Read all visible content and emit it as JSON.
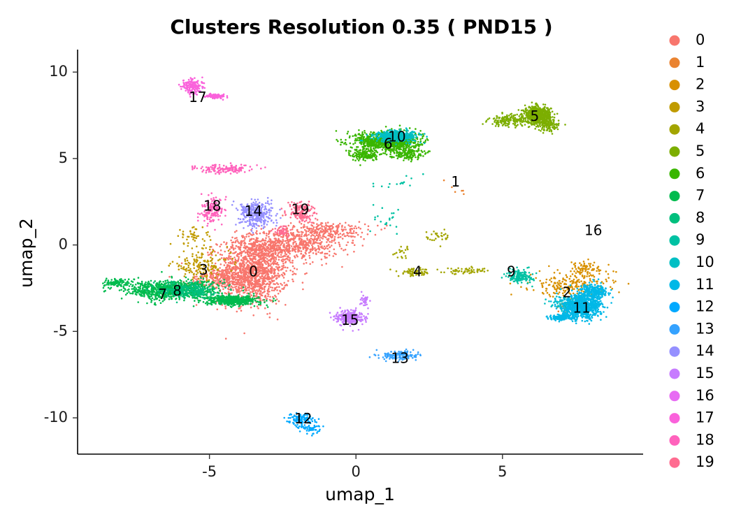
{
  "chart_data": {
    "type": "scatter",
    "title": "Clusters Resolution 0.35 ( PND15 )",
    "xlabel": "umap_1",
    "ylabel": "umap_2",
    "xlim": [
      -9.5,
      9.8
    ],
    "ylim": [
      -12.1,
      11.3
    ],
    "xticks": [
      -5,
      0,
      5
    ],
    "yticks": [
      10,
      5,
      0,
      -5,
      -10
    ],
    "xtick_labels": [
      "-5",
      "0",
      "5"
    ],
    "ytick_labels": [
      "10",
      "5",
      "0",
      "-5",
      "-10"
    ],
    "grid": false,
    "legend_position": "right",
    "series": [
      {
        "name": "0",
        "color": "#F8766D",
        "label_pos": [
          -3.5,
          -1.6
        ],
        "blobs": [
          [
            -3.5,
            -1.5,
            1.1,
            1.7,
            1300
          ],
          [
            -2.3,
            0.0,
            1.6,
            0.8,
            600
          ],
          [
            -1.0,
            0.8,
            1.3,
            0.5,
            250
          ],
          [
            -4.6,
            -2.0,
            1.0,
            0.6,
            250
          ]
        ]
      },
      {
        "name": "1",
        "color": "#EA8331",
        "label_pos": [
          3.4,
          3.6
        ],
        "blobs": [
          [
            3.6,
            3.3,
            0.5,
            0.5,
            6
          ],
          [
            7.1,
            -3.6,
            0.6,
            0.4,
            12
          ]
        ]
      },
      {
        "name": "2",
        "color": "#D89000",
        "label_pos": [
          7.2,
          -2.8
        ],
        "blobs": [
          [
            7.3,
            -2.3,
            1.2,
            0.6,
            200
          ],
          [
            7.8,
            -1.4,
            0.8,
            0.4,
            80
          ]
        ]
      },
      {
        "name": "3",
        "color": "#C09B00",
        "label_pos": [
          -5.2,
          -1.5
        ],
        "blobs": [
          [
            -5.3,
            -1.2,
            0.9,
            0.7,
            150
          ],
          [
            -5.5,
            0.4,
            0.6,
            0.6,
            50
          ]
        ]
      },
      {
        "name": "4",
        "color": "#A3A500",
        "label_pos": [
          2.1,
          -1.6
        ],
        "blobs": [
          [
            2.0,
            -1.6,
            0.5,
            0.2,
            70
          ],
          [
            3.8,
            -1.5,
            0.7,
            0.15,
            60
          ],
          [
            2.8,
            0.5,
            0.4,
            0.4,
            30
          ],
          [
            1.6,
            -0.5,
            0.3,
            0.4,
            20
          ]
        ]
      },
      {
        "name": "5",
        "color": "#7CAE00",
        "label_pos": [
          6.1,
          7.4
        ],
        "blobs": [
          [
            6.2,
            7.5,
            0.4,
            0.45,
            700
          ],
          [
            5.2,
            7.2,
            0.6,
            0.3,
            150
          ],
          [
            6.6,
            6.9,
            0.3,
            0.3,
            100
          ]
        ]
      },
      {
        "name": "6",
        "color": "#39B600",
        "label_pos": [
          1.1,
          5.8
        ],
        "blobs": [
          [
            1.1,
            6.0,
            1.0,
            0.5,
            1000
          ],
          [
            0.3,
            5.2,
            0.4,
            0.3,
            150
          ],
          [
            1.7,
            5.3,
            0.5,
            0.3,
            150
          ]
        ]
      },
      {
        "name": "7",
        "color": "#00BB4E",
        "label_pos": [
          -6.6,
          -2.9
        ],
        "blobs": [
          [
            -6.3,
            -2.6,
            1.4,
            0.5,
            900
          ],
          [
            -4.2,
            -3.2,
            0.8,
            0.25,
            500
          ],
          [
            -8.2,
            -2.2,
            0.4,
            0.2,
            100
          ]
        ]
      },
      {
        "name": "8",
        "color": "#00BF7D",
        "label_pos": [
          -6.1,
          -2.7
        ],
        "blobs": [
          [
            -5.7,
            -2.6,
            0.8,
            0.4,
            250
          ]
        ]
      },
      {
        "name": "9",
        "color": "#00C1A3",
        "label_pos": [
          5.3,
          -1.6
        ],
        "blobs": [
          [
            5.6,
            -1.8,
            0.4,
            0.35,
            150
          ],
          [
            1.0,
            1.5,
            0.6,
            0.7,
            20
          ],
          [
            1.6,
            3.5,
            0.8,
            0.5,
            15
          ]
        ]
      },
      {
        "name": "10",
        "color": "#00BFC4",
        "label_pos": [
          1.4,
          6.2
        ],
        "blobs": [
          [
            1.4,
            6.3,
            0.7,
            0.3,
            400
          ],
          [
            7.2,
            -3.4,
            0.5,
            0.4,
            100
          ]
        ]
      },
      {
        "name": "11",
        "color": "#00B8E7",
        "label_pos": [
          7.7,
          -3.7
        ],
        "blobs": [
          [
            7.7,
            -3.6,
            0.6,
            0.6,
            800
          ],
          [
            8.1,
            -2.7,
            0.4,
            0.4,
            300
          ],
          [
            7.0,
            -4.2,
            0.4,
            0.15,
            150
          ]
        ]
      },
      {
        "name": "12",
        "color": "#00A9FF",
        "label_pos": [
          -1.8,
          -10.1
        ],
        "blobs": [
          [
            -1.9,
            -10.1,
            0.4,
            0.3,
            130
          ],
          [
            -1.5,
            -10.6,
            0.3,
            0.25,
            50
          ]
        ]
      },
      {
        "name": "13",
        "color": "#35A2FF",
        "label_pos": [
          1.5,
          -6.6
        ],
        "blobs": [
          [
            1.5,
            -6.4,
            0.6,
            0.25,
            150
          ]
        ]
      },
      {
        "name": "14",
        "color": "#9590FF",
        "label_pos": [
          -3.5,
          1.9
        ],
        "blobs": [
          [
            -3.4,
            1.8,
            0.5,
            0.65,
            350
          ]
        ]
      },
      {
        "name": "15",
        "color": "#C77CFF",
        "label_pos": [
          -0.2,
          -4.4
        ],
        "blobs": [
          [
            -0.2,
            -4.2,
            0.4,
            0.35,
            300
          ],
          [
            0.3,
            -3.2,
            0.15,
            0.3,
            40
          ]
        ]
      },
      {
        "name": "16",
        "color": "#E76BF3",
        "label_pos": [
          8.1,
          0.8
        ],
        "blobs": [
          [
            -5.5,
            9.0,
            0.3,
            0.4,
            10
          ]
        ]
      },
      {
        "name": "17",
        "color": "#FA62DB",
        "label_pos": [
          -5.4,
          8.5
        ],
        "blobs": [
          [
            -5.6,
            9.2,
            0.3,
            0.4,
            150
          ],
          [
            -4.8,
            8.6,
            0.3,
            0.12,
            100
          ]
        ]
      },
      {
        "name": "18",
        "color": "#FF62BC",
        "label_pos": [
          -4.9,
          2.2
        ],
        "blobs": [
          [
            -4.9,
            2.0,
            0.35,
            0.6,
            150
          ],
          [
            -4.5,
            4.4,
            0.9,
            0.25,
            140
          ]
        ]
      },
      {
        "name": "19",
        "color": "#FF6C91",
        "label_pos": [
          -1.9,
          2.0
        ],
        "blobs": [
          [
            -1.9,
            1.9,
            0.4,
            0.5,
            150
          ],
          [
            -2.5,
            0.8,
            0.3,
            0.3,
            50
          ]
        ]
      }
    ]
  }
}
